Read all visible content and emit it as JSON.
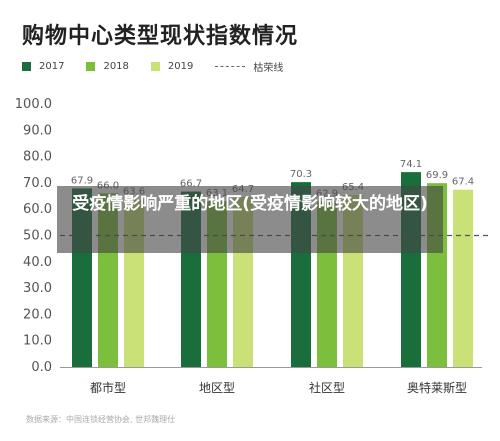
{
  "title": "购物中心类型现状指数情况",
  "legend": [
    {
      "label": "2017",
      "color": "#1a6e3c"
    },
    {
      "label": "2018",
      "color": "#7cbf3c"
    },
    {
      "label": "2019",
      "color": "#c9e176"
    }
  ],
  "baseline_label": "枯荣线",
  "overlay_text": "受疫情影响严重的地区(受疫情影响较大的地区)",
  "source": "数据来源：中国连锁经营协会, 世邦魏理仕",
  "chart_data": {
    "type": "bar",
    "categories": [
      "都市型",
      "地区型",
      "社区型",
      "奥特莱斯型"
    ],
    "series": [
      {
        "name": "2017",
        "values": [
          67.9,
          66.7,
          70.3,
          74.1
        ]
      },
      {
        "name": "2018",
        "values": [
          66.0,
          63.1,
          62.9,
          69.9
        ]
      },
      {
        "name": "2019",
        "values": [
          63.6,
          64.7,
          65.4,
          67.4
        ]
      }
    ],
    "ylim": [
      0,
      100
    ],
    "yticks": [
      0.0,
      10.0,
      20.0,
      30.0,
      40.0,
      50.0,
      60.0,
      70.0,
      80.0,
      90.0,
      100.0
    ],
    "reference_line": {
      "value": 50,
      "label": "枯荣线"
    },
    "colors": [
      "#1a6e3c",
      "#7cbf3c",
      "#c9e176"
    ],
    "value_labels": true,
    "grid": false,
    "legend_position": "top-left"
  }
}
